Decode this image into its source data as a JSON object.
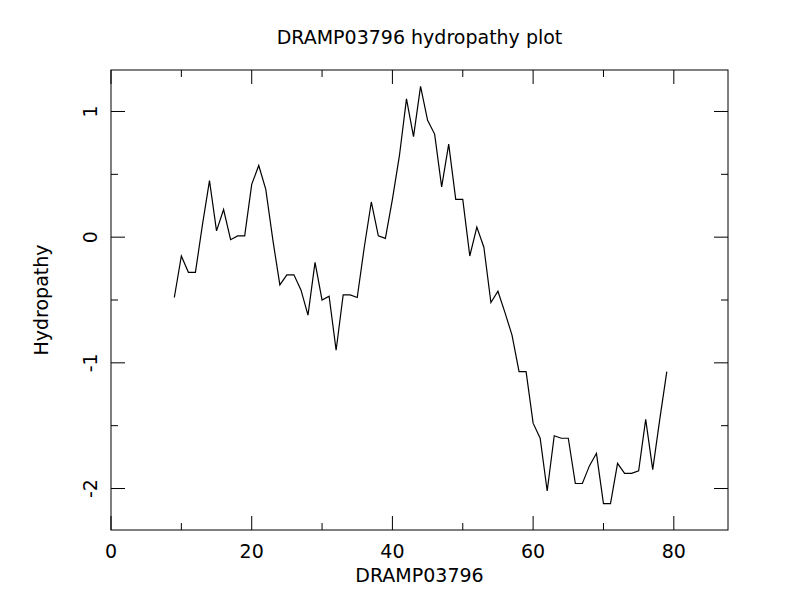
{
  "chart_data": {
    "type": "line",
    "title": "DRAMP03796 hydropathy plot",
    "x_label": "DRAMP03796",
    "y_label": "Hydropathy",
    "color": "#000000",
    "x": [
      9,
      10,
      11,
      12,
      13,
      14,
      15,
      16,
      17,
      18,
      19,
      20,
      21,
      22,
      23,
      24,
      25,
      26,
      27,
      28,
      29,
      30,
      31,
      32,
      33,
      34,
      35,
      36,
      37,
      38,
      39,
      40,
      41,
      42,
      43,
      44,
      45,
      46,
      47,
      48,
      49,
      50,
      51,
      52,
      53,
      54,
      55,
      56,
      57,
      58,
      59,
      60,
      61,
      62,
      63,
      64,
      65,
      66,
      67,
      68,
      69,
      70,
      71,
      72,
      73,
      74,
      75,
      76,
      77,
      78,
      79
    ],
    "values": [
      -0.48,
      -0.15,
      -0.28,
      -0.28,
      0.1,
      0.45,
      0.05,
      0.22,
      -0.02,
      0.01,
      0.01,
      0.42,
      0.57,
      0.38,
      -0.02,
      -0.38,
      -0.3,
      -0.3,
      -0.42,
      -0.62,
      -0.2,
      -0.5,
      -0.47,
      -0.9,
      -0.46,
      -0.46,
      -0.48,
      -0.08,
      0.28,
      0.01,
      -0.01,
      0.3,
      0.65,
      1.1,
      0.8,
      1.2,
      0.93,
      0.82,
      0.4,
      0.74,
      0.3,
      0.3,
      -0.15,
      0.08,
      -0.08,
      -0.52,
      -0.43,
      -0.6,
      -0.78,
      -1.07,
      -1.07,
      -1.48,
      -1.6,
      -2.02,
      -1.58,
      -1.6,
      -1.6,
      -1.96,
      -1.96,
      -1.82,
      -1.72,
      -2.12,
      -2.12,
      -1.8,
      -1.88,
      -1.88,
      -1.86,
      -1.45,
      -1.85,
      -1.45,
      -1.07
    ],
    "xlim": [
      0,
      87.7
    ],
    "xticks": [
      0,
      20,
      40,
      60,
      80
    ],
    "ylim": [
      -2.33,
      1.33
    ],
    "yticks": [
      -2,
      -1,
      0,
      1
    ],
    "grid": false
  }
}
